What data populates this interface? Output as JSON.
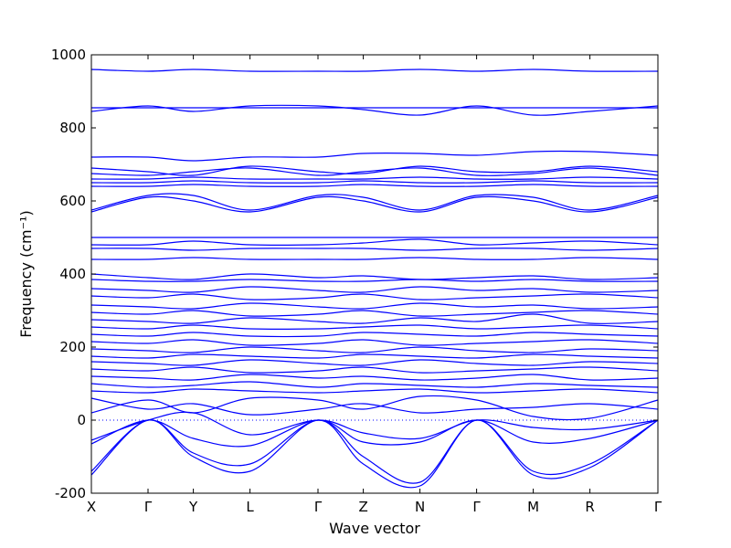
{
  "chart_data": {
    "type": "line",
    "title": "",
    "xlabel": "Wave vector",
    "ylabel": "Frequency (cm⁻¹)",
    "ylim": [
      -200,
      1000
    ],
    "yticks": [
      1000,
      800,
      600,
      400,
      200,
      0,
      -200
    ],
    "xlim": [
      0,
      10
    ],
    "xticks": [
      {
        "label": "X",
        "x": 0
      },
      {
        "label": "Γ",
        "x": 1
      },
      {
        "label": "Y",
        "x": 1.8
      },
      {
        "label": "L",
        "x": 2.8
      },
      {
        "label": "Γ",
        "x": 4
      },
      {
        "label": "Z",
        "x": 4.8
      },
      {
        "label": "N",
        "x": 5.8
      },
      {
        "label": "Γ",
        "x": 6.8
      },
      {
        "label": "M",
        "x": 7.8
      },
      {
        "label": "R",
        "x": 8.8
      },
      {
        "label": "Γ",
        "x": 10
      }
    ],
    "zero_line": true,
    "grid": false,
    "line_color": "#0000ff",
    "series": [
      {
        "x": [
          0,
          1,
          1.8,
          2.8,
          4,
          4.8,
          5.8,
          6.8,
          7.8,
          8.8,
          10
        ],
        "y": [
          -150,
          0,
          -100,
          -140,
          0,
          -120,
          -180,
          0,
          -150,
          -130,
          0
        ]
      },
      {
        "x": [
          0,
          1,
          1.8,
          2.8,
          4,
          4.8,
          5.8,
          6.8,
          7.8,
          8.8,
          10
        ],
        "y": [
          -140,
          0,
          -90,
          -120,
          0,
          -100,
          -170,
          0,
          -140,
          -120,
          0
        ]
      },
      {
        "x": [
          0,
          1,
          1.8,
          2.8,
          4,
          4.8,
          5.8,
          6.8,
          7.8,
          8.8,
          10
        ],
        "y": [
          -65,
          0,
          -50,
          -70,
          0,
          -60,
          -60,
          0,
          -60,
          -50,
          0
        ]
      },
      {
        "x": [
          0,
          1,
          1.8,
          2.8,
          4,
          4.8,
          5.8,
          6.8,
          7.8,
          8.8,
          10
        ],
        "y": [
          -55,
          0,
          20,
          -40,
          0,
          -35,
          -50,
          0,
          -20,
          -25,
          0
        ]
      },
      {
        "x": [
          0,
          1,
          1.8,
          2.8,
          4,
          4.8,
          5.8,
          6.8,
          7.8,
          8.8,
          10
        ],
        "y": [
          20,
          55,
          20,
          60,
          55,
          30,
          65,
          55,
          10,
          5,
          55
        ]
      },
      {
        "x": [
          0,
          1,
          1.8,
          2.8,
          4,
          4.8,
          5.8,
          6.8,
          7.8,
          8.8,
          10
        ],
        "y": [
          60,
          30,
          45,
          15,
          30,
          45,
          20,
          30,
          35,
          45,
          30
        ]
      },
      {
        "x": [
          0,
          1,
          1.8,
          2.8,
          4,
          4.8,
          5.8,
          6.8,
          7.8,
          8.8,
          10
        ],
        "y": [
          80,
          75,
          85,
          80,
          75,
          80,
          85,
          75,
          80,
          85,
          75
        ]
      },
      {
        "x": [
          0,
          1,
          1.8,
          2.8,
          4,
          4.8,
          5.8,
          6.8,
          7.8,
          8.8,
          10
        ],
        "y": [
          100,
          90,
          95,
          105,
          90,
          100,
          95,
          90,
          100,
          95,
          90
        ]
      },
      {
        "x": [
          0,
          1,
          1.8,
          2.8,
          4,
          4.8,
          5.8,
          6.8,
          7.8,
          8.8,
          10
        ],
        "y": [
          120,
          115,
          110,
          125,
          115,
          120,
          110,
          115,
          125,
          110,
          115
        ]
      },
      {
        "x": [
          0,
          1,
          1.8,
          2.8,
          4,
          4.8,
          5.8,
          6.8,
          7.8,
          8.8,
          10
        ],
        "y": [
          140,
          135,
          145,
          130,
          135,
          145,
          130,
          135,
          140,
          145,
          135
        ]
      },
      {
        "x": [
          0,
          1,
          1.8,
          2.8,
          4,
          4.8,
          5.8,
          6.8,
          7.8,
          8.8,
          10
        ],
        "y": [
          160,
          155,
          150,
          165,
          155,
          150,
          165,
          155,
          150,
          160,
          155
        ]
      },
      {
        "x": [
          0,
          1,
          1.8,
          2.8,
          4,
          4.8,
          5.8,
          6.8,
          7.8,
          8.8,
          10
        ],
        "y": [
          175,
          170,
          180,
          175,
          170,
          180,
          175,
          170,
          180,
          175,
          170
        ]
      },
      {
        "x": [
          0,
          1,
          1.8,
          2.8,
          4,
          4.8,
          5.8,
          6.8,
          7.8,
          8.8,
          10
        ],
        "y": [
          195,
          190,
          185,
          200,
          190,
          185,
          200,
          190,
          185,
          195,
          190
        ]
      },
      {
        "x": [
          0,
          1,
          1.8,
          2.8,
          4,
          4.8,
          5.8,
          6.8,
          7.8,
          8.8,
          10
        ],
        "y": [
          215,
          210,
          220,
          205,
          210,
          220,
          205,
          210,
          215,
          220,
          210
        ]
      },
      {
        "x": [
          0,
          1,
          1.8,
          2.8,
          4,
          4.8,
          5.8,
          6.8,
          7.8,
          8.8,
          10
        ],
        "y": [
          235,
          230,
          240,
          230,
          230,
          240,
          235,
          230,
          240,
          235,
          230
        ]
      },
      {
        "x": [
          0,
          1,
          1.8,
          2.8,
          4,
          4.8,
          5.8,
          6.8,
          7.8,
          8.8,
          10
        ],
        "y": [
          255,
          250,
          260,
          250,
          250,
          255,
          260,
          250,
          255,
          260,
          250
        ]
      },
      {
        "x": [
          0,
          1,
          1.8,
          2.8,
          4,
          4.8,
          5.8,
          6.8,
          7.8,
          8.8,
          10
        ],
        "y": [
          275,
          270,
          265,
          280,
          270,
          265,
          280,
          270,
          290,
          265,
          270
        ]
      },
      {
        "x": [
          0,
          1,
          1.8,
          2.8,
          4,
          4.8,
          5.8,
          6.8,
          7.8,
          8.8,
          10
        ],
        "y": [
          295,
          290,
          300,
          285,
          290,
          300,
          285,
          290,
          295,
          300,
          290
        ]
      },
      {
        "x": [
          0,
          1,
          1.8,
          2.8,
          4,
          4.8,
          5.8,
          6.8,
          7.8,
          8.8,
          10
        ],
        "y": [
          315,
          310,
          305,
          320,
          310,
          305,
          320,
          310,
          315,
          305,
          310
        ]
      },
      {
        "x": [
          0,
          1,
          1.8,
          2.8,
          4,
          4.8,
          5.8,
          6.8,
          7.8,
          8.8,
          10
        ],
        "y": [
          340,
          335,
          345,
          330,
          335,
          345,
          330,
          335,
          340,
          345,
          335
        ]
      },
      {
        "x": [
          0,
          1,
          1.8,
          2.8,
          4,
          4.8,
          5.8,
          6.8,
          7.8,
          8.8,
          10
        ],
        "y": [
          360,
          355,
          350,
          365,
          355,
          350,
          365,
          355,
          360,
          350,
          355
        ]
      },
      {
        "x": [
          0,
          1,
          1.8,
          2.8,
          4,
          4.8,
          5.8,
          6.8,
          7.8,
          8.8,
          10
        ],
        "y": [
          385,
          380,
          380,
          385,
          380,
          380,
          385,
          380,
          385,
          380,
          380
        ]
      },
      {
        "x": [
          0,
          1,
          1.8,
          2.8,
          4,
          4.8,
          5.8,
          6.8,
          7.8,
          8.8,
          10
        ],
        "y": [
          400,
          390,
          385,
          400,
          390,
          395,
          385,
          390,
          395,
          385,
          390
        ]
      },
      {
        "x": [
          0,
          1,
          1.8,
          2.8,
          4,
          4.8,
          5.8,
          6.8,
          7.8,
          8.8,
          10
        ],
        "y": [
          440,
          440,
          445,
          440,
          440,
          440,
          445,
          440,
          440,
          445,
          440
        ]
      },
      {
        "x": [
          0,
          1,
          1.8,
          2.8,
          4,
          4.8,
          5.8,
          6.8,
          7.8,
          8.8,
          10
        ],
        "y": [
          470,
          470,
          465,
          470,
          470,
          470,
          465,
          470,
          470,
          465,
          470
        ]
      },
      {
        "x": [
          0,
          1,
          1.8,
          2.8,
          4,
          4.8,
          5.8,
          6.8,
          7.8,
          8.8,
          10
        ],
        "y": [
          480,
          480,
          490,
          480,
          480,
          485,
          495,
          480,
          485,
          490,
          480
        ]
      },
      {
        "x": [
          0,
          1,
          1.8,
          2.8,
          4,
          4.8,
          5.8,
          6.8,
          7.8,
          8.8,
          10
        ],
        "y": [
          500,
          500,
          500,
          500,
          500,
          500,
          500,
          500,
          500,
          500,
          500
        ]
      },
      {
        "x": [
          0,
          1,
          1.8,
          2.8,
          4,
          4.8,
          5.8,
          6.8,
          7.8,
          8.8,
          10
        ],
        "y": [
          570,
          610,
          600,
          570,
          610,
          600,
          570,
          610,
          600,
          570,
          610
        ]
      },
      {
        "x": [
          0,
          1,
          1.8,
          2.8,
          4,
          4.8,
          5.8,
          6.8,
          7.8,
          8.8,
          10
        ],
        "y": [
          575,
          615,
          615,
          575,
          615,
          610,
          575,
          615,
          610,
          575,
          615
        ]
      },
      {
        "x": [
          0,
          1,
          1.8,
          2.8,
          4,
          4.8,
          5.8,
          6.8,
          7.8,
          8.8,
          10
        ],
        "y": [
          640,
          640,
          645,
          640,
          640,
          645,
          640,
          640,
          645,
          640,
          640
        ]
      },
      {
        "x": [
          0,
          1,
          1.8,
          2.8,
          4,
          4.8,
          5.8,
          6.8,
          7.8,
          8.8,
          10
        ],
        "y": [
          650,
          650,
          655,
          650,
          650,
          655,
          650,
          650,
          655,
          650,
          650
        ]
      },
      {
        "x": [
          0,
          1,
          1.8,
          2.8,
          4,
          4.8,
          5.8,
          6.8,
          7.8,
          8.8,
          10
        ],
        "y": [
          660,
          660,
          665,
          660,
          660,
          660,
          665,
          660,
          660,
          665,
          660
        ]
      },
      {
        "x": [
          0,
          1,
          1.8,
          2.8,
          4,
          4.8,
          5.8,
          6.8,
          7.8,
          8.8,
          10
        ],
        "y": [
          675,
          670,
          680,
          690,
          670,
          680,
          690,
          670,
          675,
          690,
          670
        ]
      },
      {
        "x": [
          0,
          1,
          1.8,
          2.8,
          4,
          4.8,
          5.8,
          6.8,
          7.8,
          8.8,
          10
        ],
        "y": [
          690,
          680,
          670,
          695,
          680,
          675,
          695,
          680,
          680,
          695,
          680
        ]
      },
      {
        "x": [
          0,
          1,
          1.8,
          2.8,
          4,
          4.8,
          5.8,
          6.8,
          7.8,
          8.8,
          10
        ],
        "y": [
          720,
          720,
          710,
          720,
          720,
          730,
          730,
          725,
          735,
          735,
          725
        ]
      },
      {
        "x": [
          0,
          1,
          1.8,
          2.8,
          4,
          4.8,
          5.8,
          6.8,
          7.8,
          8.8,
          10
        ],
        "y": [
          845,
          860,
          845,
          860,
          860,
          850,
          835,
          860,
          835,
          845,
          860
        ]
      },
      {
        "x": [
          0,
          1,
          1.8,
          2.8,
          4,
          4.8,
          5.8,
          6.8,
          7.8,
          8.8,
          10
        ],
        "y": [
          855,
          855,
          855,
          855,
          855,
          855,
          855,
          855,
          855,
          855,
          855
        ]
      },
      {
        "x": [
          0,
          1,
          1.8,
          2.8,
          4,
          4.8,
          5.8,
          6.8,
          7.8,
          8.8,
          10
        ],
        "y": [
          960,
          955,
          960,
          955,
          955,
          955,
          960,
          955,
          960,
          955,
          955
        ]
      }
    ]
  }
}
